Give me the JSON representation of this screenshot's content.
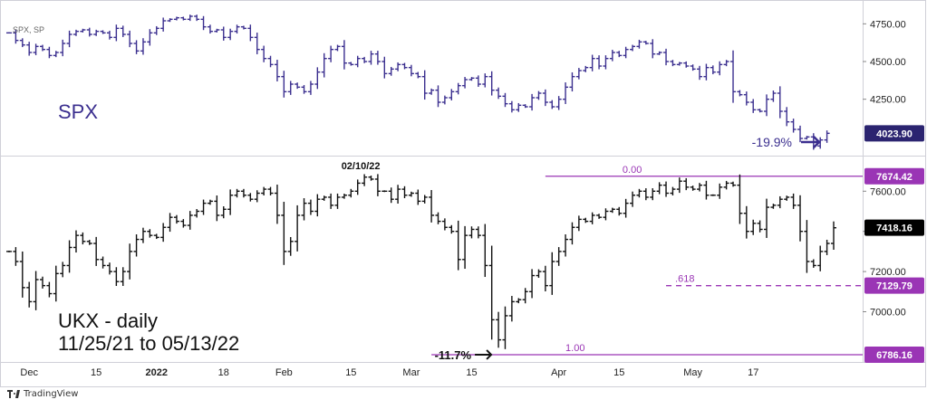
{
  "chart_data": [
    {
      "type": "ohlc",
      "symbol_label": "SPX, SP",
      "title": "SPX",
      "color": "#3b2f8f",
      "ylim": [
        3900,
        4800
      ],
      "yticks": [
        "4750.00",
        "4500.00",
        "4250.00"
      ],
      "yticks_values": [
        4750,
        4500,
        4250
      ],
      "last_value_label": "4023.90",
      "last_value": 4023.9,
      "annotation": "-19.9%",
      "closes": [
        4690,
        4640,
        4610,
        4560,
        4600,
        4580,
        4540,
        4560,
        4620,
        4680,
        4700,
        4710,
        4680,
        4700,
        4690,
        4660,
        4720,
        4680,
        4620,
        4570,
        4630,
        4690,
        4720,
        4770,
        4780,
        4790,
        4780,
        4800,
        4780,
        4730,
        4700,
        4710,
        4660,
        4700,
        4730,
        4720,
        4660,
        4580,
        4520,
        4480,
        4400,
        4300,
        4350,
        4330,
        4300,
        4350,
        4430,
        4520,
        4580,
        4600,
        4490,
        4480,
        4520,
        4500,
        4550,
        4500,
        4420,
        4450,
        4480,
        4460,
        4420,
        4400,
        4290,
        4310,
        4230,
        4260,
        4300,
        4340,
        4380,
        4390,
        4350,
        4400,
        4310,
        4270,
        4220,
        4180,
        4210,
        4200,
        4260,
        4290,
        4230,
        4200,
        4250,
        4330,
        4400,
        4440,
        4460,
        4520,
        4470,
        4520,
        4560,
        4540,
        4580,
        4600,
        4630,
        4620,
        4550,
        4560,
        4500,
        4480,
        4490,
        4470,
        4450,
        4400,
        4460,
        4430,
        4480,
        4500,
        4300,
        4280,
        4230,
        4180,
        4170,
        4250,
        4290,
        4170,
        4100,
        4050,
        3990,
        4000,
        3940,
        3980,
        4024
      ]
    },
    {
      "type": "ohlc",
      "title": "UKX - daily",
      "subtitle": "11/25/21 to 05/13/22",
      "color": "#111111",
      "ylim": [
        6750,
        7750
      ],
      "yticks": [
        "7600.00",
        "7400.00",
        "7200.00",
        "7000.00"
      ],
      "yticks_values": [
        7600,
        7400,
        7200,
        7000
      ],
      "last_value_label": "7418.16",
      "last_value": 7418.16,
      "peak_label": "02/10/22",
      "annotation": "-11.7%",
      "fib_color": "#9a35b5",
      "levels": [
        {
          "label": "0.00",
          "value": 7674.42,
          "tag": "7674.42",
          "style": "solid"
        },
        {
          "label": ".618",
          "value": 7129.79,
          "tag": "7129.79",
          "style": "dashed"
        },
        {
          "label": "1.00",
          "value": 6786.16,
          "tag": "6786.16",
          "style": "solid"
        }
      ],
      "closes": [
        7300,
        7250,
        7120,
        7050,
        7160,
        7130,
        7090,
        7190,
        7230,
        7320,
        7380,
        7350,
        7340,
        7260,
        7230,
        7200,
        7150,
        7200,
        7300,
        7360,
        7400,
        7380,
        7370,
        7420,
        7470,
        7450,
        7430,
        7480,
        7500,
        7540,
        7550,
        7480,
        7510,
        7580,
        7600,
        7580,
        7560,
        7590,
        7610,
        7590,
        7480,
        7300,
        7350,
        7480,
        7540,
        7500,
        7560,
        7570,
        7530,
        7570,
        7580,
        7600,
        7640,
        7670,
        7660,
        7600,
        7600,
        7560,
        7610,
        7580,
        7590,
        7550,
        7570,
        7480,
        7450,
        7420,
        7400,
        7260,
        7380,
        7410,
        7380,
        7230,
        6960,
        6860,
        6980,
        7050,
        7060,
        7100,
        7180,
        7200,
        7130,
        7250,
        7300,
        7360,
        7420,
        7460,
        7450,
        7480,
        7470,
        7500,
        7510,
        7490,
        7540,
        7580,
        7600,
        7570,
        7600,
        7630,
        7590,
        7610,
        7650,
        7620,
        7610,
        7630,
        7580,
        7580,
        7620,
        7640,
        7630,
        7490,
        7400,
        7440,
        7410,
        7520,
        7530,
        7560,
        7570,
        7530,
        7400,
        7250,
        7230,
        7300,
        7340,
        7418
      ]
    }
  ],
  "x_axis": {
    "ticks": [
      {
        "label": "Dec",
        "idx": 3
      },
      {
        "label": "15",
        "idx": 13
      },
      {
        "label": "2022",
        "idx": 22
      },
      {
        "label": "18",
        "idx": 32
      },
      {
        "label": "Feb",
        "idx": 41
      },
      {
        "label": "15",
        "idx": 51
      },
      {
        "label": "Mar",
        "idx": 60
      },
      {
        "label": "15",
        "idx": 69
      },
      {
        "label": "Apr",
        "idx": 82
      },
      {
        "label": "15",
        "idx": 91
      },
      {
        "label": "May",
        "idx": 102
      },
      {
        "label": "17",
        "idx": 111
      }
    ],
    "bold_labels": [
      "2022"
    ]
  },
  "footer": {
    "brand": "TradingView"
  }
}
